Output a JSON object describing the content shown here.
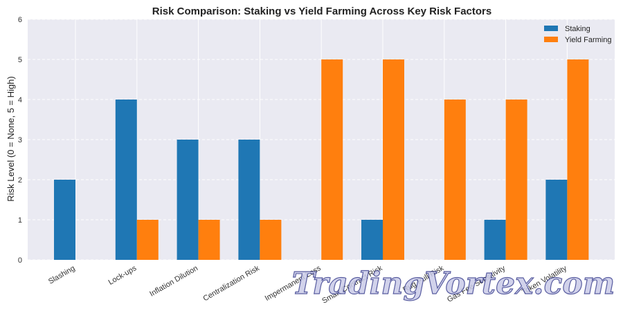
{
  "chart_data": {
    "type": "bar",
    "title": "Risk Comparison: Staking vs Yield Farming Across Key Risk Factors",
    "ylabel": "Risk Level (0 = None, 5 = High)",
    "xlabel": "",
    "ylim": [
      0,
      6
    ],
    "yticks": [
      0,
      1,
      2,
      3,
      4,
      5,
      6
    ],
    "grid": true,
    "legend_position": "top-right",
    "categories": [
      "Slashing",
      "Lock-ups",
      "Inflation Dilution",
      "Centralization Risk",
      "Impermanent Loss",
      "Smart Contract Risk",
      "Rug Pull Risk",
      "Gas Fee Sensitivity",
      "Token Volatility"
    ],
    "series": [
      {
        "name": "Staking",
        "color": "#1f77b4",
        "values": [
          2,
          4,
          3,
          3,
          0,
          1,
          0,
          1,
          2
        ]
      },
      {
        "name": "Yield Farming",
        "color": "#ff7f0e",
        "values": [
          0,
          1,
          1,
          1,
          5,
          5,
          4,
          4,
          5
        ]
      }
    ]
  },
  "watermark": "TradingVortex.com",
  "colors": {
    "plot_background": "#eaeaf2",
    "grid": "#ffffff"
  }
}
